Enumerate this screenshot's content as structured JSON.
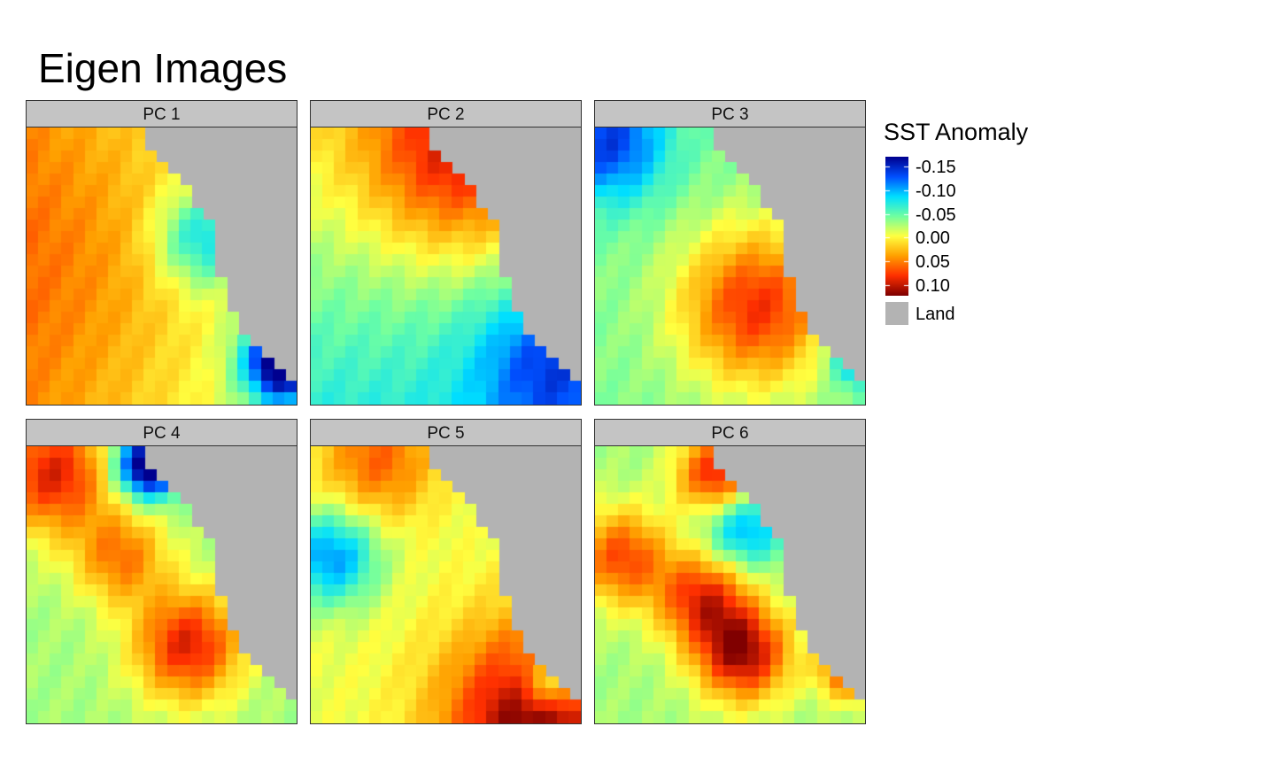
{
  "title": "Eigen Images",
  "chart_data": {
    "type": "heatmap",
    "title": "Eigen Images",
    "panels": [
      "PC 1",
      "PC 2",
      "PC 3",
      "PC 4",
      "PC 5",
      "PC 6"
    ],
    "legend": {
      "title": "SST Anomaly",
      "ticks": [
        "-0.15",
        "-0.10",
        "-0.05",
        "0.00",
        "0.05",
        "0.10"
      ],
      "tick_values": [
        -0.15,
        -0.1,
        -0.05,
        0.0,
        0.05,
        0.1
      ],
      "range": [
        -0.17,
        0.12
      ],
      "land_label": "Land",
      "land_color": "#b3b3b3",
      "colorscale": [
        "#00008f",
        "#0050ff",
        "#00dfff",
        "#70ffa0",
        "#ffff40",
        "#ffa000",
        "#ff3000",
        "#800000"
      ]
    },
    "grid": {
      "nx": 23,
      "ny": 24,
      "land_boundary_cols_per_row": [
        10,
        10,
        11,
        12,
        13,
        14,
        14,
        15,
        16,
        16,
        16,
        16,
        16,
        17,
        17,
        17,
        18,
        18,
        19,
        20,
        21,
        22,
        23,
        23
      ]
    },
    "fields": {
      "PC 1": {
        "base": 0.04,
        "terms": [
          {
            "x": 0.2,
            "y": 0.5,
            "amp": 0.02,
            "s": 0.35
          },
          {
            "x": 0.95,
            "y": 0.85,
            "amp": -0.19,
            "s": 0.1
          },
          {
            "x": 0.65,
            "y": 0.4,
            "amp": -0.08,
            "s": 0.12
          }
        ],
        "gradient_x": -0.07
      },
      "PC 2": {
        "base": 0.0,
        "terms": [
          {
            "x": 0.55,
            "y": 0.1,
            "amp": 0.1,
            "s": 0.25
          },
          {
            "x": 0.9,
            "y": 0.85,
            "amp": -0.08,
            "s": 0.2
          }
        ],
        "gradient_y": -0.07
      },
      "PC 3": {
        "base": -0.04,
        "terms": [
          {
            "x": 0.6,
            "y": 0.65,
            "amp": 0.12,
            "s": 0.2
          },
          {
            "x": 0.05,
            "y": 0.05,
            "amp": -0.1,
            "s": 0.15
          },
          {
            "x": 1.0,
            "y": 0.8,
            "amp": -0.14,
            "s": 0.08
          }
        ]
      },
      "PC 4": {
        "base": -0.03,
        "terms": [
          {
            "x": 0.1,
            "y": 0.1,
            "amp": 0.12,
            "s": 0.15
          },
          {
            "x": 0.45,
            "y": 0.07,
            "amp": -0.18,
            "s": 0.08
          },
          {
            "x": 0.6,
            "y": 0.72,
            "amp": 0.12,
            "s": 0.14
          },
          {
            "x": 0.35,
            "y": 0.4,
            "amp": 0.08,
            "s": 0.12
          }
        ]
      },
      "PC 5": {
        "base": -0.01,
        "terms": [
          {
            "x": 0.25,
            "y": 0.05,
            "amp": 0.07,
            "s": 0.15
          },
          {
            "x": 0.08,
            "y": 0.4,
            "amp": -0.1,
            "s": 0.12
          },
          {
            "x": 0.85,
            "y": 1.0,
            "amp": 0.14,
            "s": 0.25
          },
          {
            "x": 0.9,
            "y": 0.85,
            "amp": -0.09,
            "s": 0.08
          }
        ]
      },
      "PC 6": {
        "base": -0.03,
        "terms": [
          {
            "x": 0.45,
            "y": 0.1,
            "amp": 0.12,
            "s": 0.1
          },
          {
            "x": 0.1,
            "y": 0.4,
            "amp": 0.1,
            "s": 0.12
          },
          {
            "x": 0.4,
            "y": 0.55,
            "amp": 0.11,
            "s": 0.12
          },
          {
            "x": 0.55,
            "y": 0.75,
            "amp": 0.14,
            "s": 0.12
          },
          {
            "x": 0.95,
            "y": 0.8,
            "amp": 0.12,
            "s": 0.08
          },
          {
            "x": 0.55,
            "y": 0.3,
            "amp": -0.08,
            "s": 0.1
          }
        ]
      }
    }
  }
}
